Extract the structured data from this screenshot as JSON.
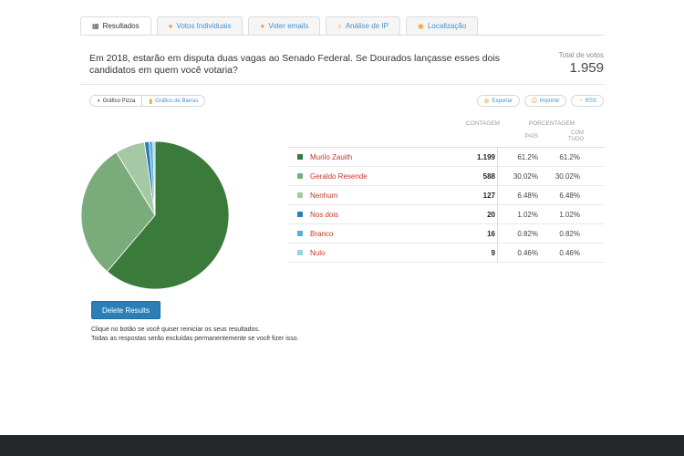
{
  "tabs": [
    {
      "label": "Resultados",
      "icon": "table-icon",
      "active": true
    },
    {
      "label": "Votos Individuais",
      "icon": "person-icon",
      "active": false
    },
    {
      "label": "Voter emails",
      "icon": "person-icon",
      "active": false
    },
    {
      "label": "Análise de IP",
      "icon": "search-icon",
      "active": false
    },
    {
      "label": "Localização",
      "icon": "pin-icon",
      "active": false
    }
  ],
  "question": "Em 2018, estarão em disputa duas vagas ao Senado Federal. Se Dourados lançasse esses dois candidatos em quem você votaria?",
  "total": {
    "label": "Total de votos",
    "value": "1.959"
  },
  "chart_toggle": {
    "pie_label": "Gráfico Pizza",
    "bar_label": "Gráfico de Barras"
  },
  "actions": {
    "export": "Exportar",
    "print": "Imprimir",
    "rss": "RSS"
  },
  "table_headers": {
    "count": "CONTAGEM",
    "percentage": "PORCENTAGEM",
    "country": "PAÍS",
    "all_line1": "COM",
    "all_line2": "TUDO"
  },
  "results": [
    {
      "label": "Murilo Zauith",
      "count": "1.199",
      "country": "61.2%",
      "all": "61.2%",
      "color": "#3a7a3a"
    },
    {
      "label": "Geraldo Resende",
      "count": "588",
      "country": "30.02%",
      "all": "30.02%",
      "color": "#7aab7a"
    },
    {
      "label": "Nenhum",
      "count": "127",
      "country": "6.48%",
      "all": "6.48%",
      "color": "#a5c8a5"
    },
    {
      "label": "Nos dois",
      "count": "20",
      "country": "1.02%",
      "all": "1.02%",
      "color": "#2a7fb9"
    },
    {
      "label": "Branco",
      "count": "16",
      "country": "0.82%",
      "all": "0.82%",
      "color": "#5aaed8"
    },
    {
      "label": "Nulo",
      "count": "9",
      "country": "0.46%",
      "all": "0.46%",
      "color": "#9fd0ea"
    }
  ],
  "chart_data": {
    "type": "pie",
    "categories": [
      "Murilo Zauith",
      "Geraldo Resende",
      "Nenhum",
      "Nos dois",
      "Branco",
      "Nulo"
    ],
    "values": [
      1199,
      588,
      127,
      20,
      16,
      9
    ],
    "colors": [
      "#3a7a3a",
      "#7aab7a",
      "#a5c8a5",
      "#2a7fb9",
      "#5aaed8",
      "#9fd0ea"
    ]
  },
  "delete_button": "Delete Results",
  "notes": {
    "line1": "Clique no botão se você quiser reiniciar os seus resultados.",
    "line2": "Todas as respostas serão excluídas permanentemente se você fizer isso."
  }
}
